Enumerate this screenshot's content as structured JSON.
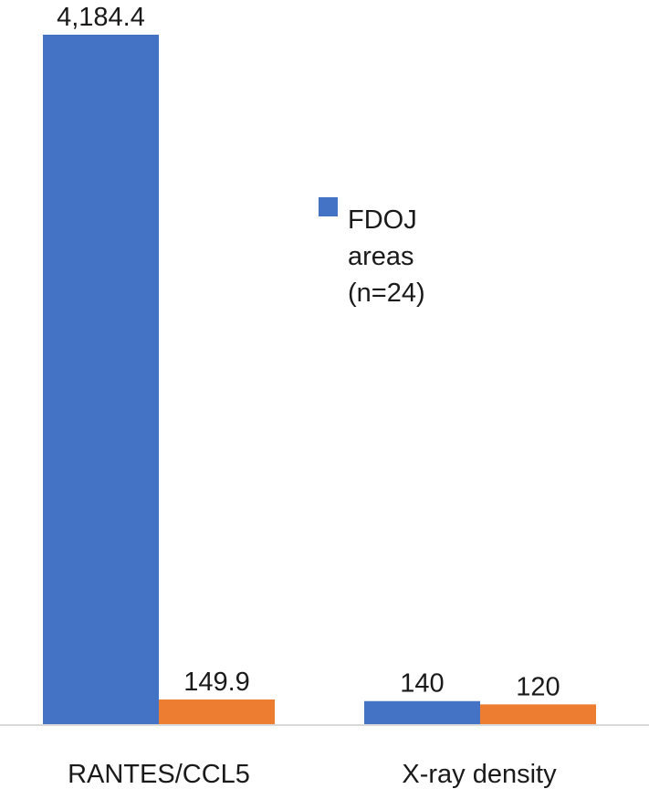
{
  "chart_data": {
    "type": "bar",
    "categories": [
      "RANTES/CCL5",
      "X-ray density"
    ],
    "series": [
      {
        "name": "FDOJ areas (n=24)",
        "color": "#4472c4",
        "values": [
          4184.4,
          140
        ],
        "labels": [
          "4,184.4",
          "140"
        ]
      },
      {
        "name": "",
        "color": "#ed7d31",
        "values": [
          149.9,
          120
        ],
        "labels": [
          "149.9",
          "120"
        ]
      }
    ],
    "legend": {
      "lines": [
        "FDOJ",
        "areas",
        "(n=24)"
      ],
      "placement": "center-right"
    },
    "axis": {
      "color": "#d9d9d9"
    }
  }
}
